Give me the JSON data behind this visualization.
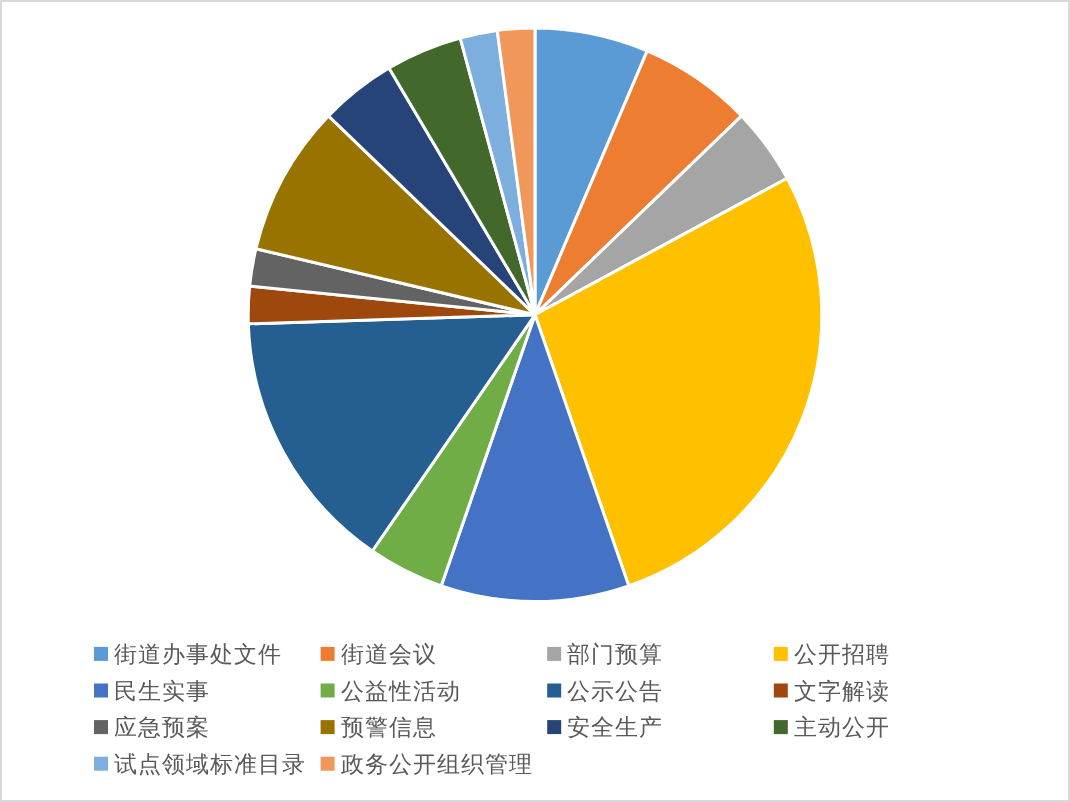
{
  "chart_data": {
    "type": "pie",
    "categories": [
      "街道办事处文件",
      "街道会议",
      "部门预算",
      "公开招聘",
      "民生实事",
      "公益性活动",
      "公示公告",
      "文字解读",
      "应急预案",
      "预警信息",
      "安全生产",
      "主动公开",
      "试点领域标准目录",
      "政务公开组织管理"
    ],
    "values": [
      6.4,
      6.4,
      4.3,
      27.6,
      10.6,
      4.3,
      14.9,
      2.1,
      2.1,
      8.5,
      4.3,
      4.3,
      2.1,
      2.1
    ],
    "colors": [
      "#5b9bd5",
      "#ed7d31",
      "#a5a5a5",
      "#ffc000",
      "#4472c4",
      "#70ad47",
      "#255e91",
      "#9e480e",
      "#636363",
      "#997300",
      "#264478",
      "#43682b",
      "#7cafdd",
      "#f1975a"
    ],
    "legend": "bottom"
  }
}
